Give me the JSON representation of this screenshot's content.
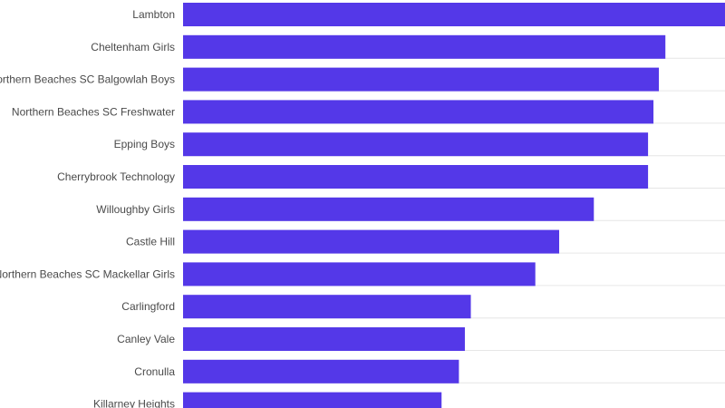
{
  "chart_data": {
    "type": "bar",
    "orientation": "horizontal",
    "title": "",
    "xlabel": "",
    "ylabel": "",
    "categories": [
      "Lambton",
      "Cheltenham Girls",
      "Northern Beaches SC Balgowlah Boys",
      "Northern Beaches SC Freshwater",
      "Epping Boys",
      "Cherrybrook Technology",
      "Willoughby Girls",
      "Castle Hill",
      "Northern Beaches SC Mackellar Girls",
      "Carlingford",
      "Canley Vale",
      "Cronulla",
      "Killarney Heights"
    ],
    "values": [
      100,
      89.0,
      87.8,
      86.8,
      85.8,
      85.8,
      75.8,
      69.4,
      65.0,
      53.1,
      52.0,
      50.9,
      47.7
    ],
    "xlim": [
      0,
      100
    ],
    "grid": true,
    "bar_color": "#5438e8",
    "grid_color": "#e6e6e6"
  }
}
